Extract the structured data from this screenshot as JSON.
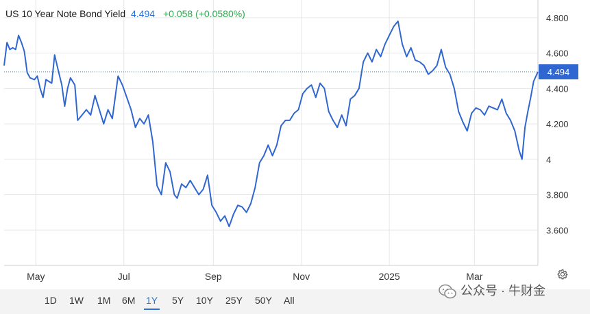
{
  "header": {
    "title": "US 10 Year Note Bond Yield",
    "price": "4.494",
    "change": "+0.058 (+0.0580%)"
  },
  "colors": {
    "line": "#2f66d0",
    "price": "#2a6fd1",
    "change": "#2fa84f",
    "grid": "#e6e6e6",
    "ref_line": "#2f8ea8",
    "badge": "#2f66d0"
  },
  "chart_data": {
    "type": "line",
    "title": "US 10 Year Note Bond Yield",
    "current_value": 4.494,
    "current_label": "4.494",
    "ylim": [
      3.4,
      4.9
    ],
    "yticks": [
      3.6,
      3.8,
      4.0,
      4.2,
      4.4,
      4.6,
      4.8
    ],
    "ytick_labels": [
      "3.600",
      "3.800",
      "4",
      "4.200",
      "4.400",
      "4.600",
      "4.800"
    ],
    "xlim": [
      "2024-04-09",
      "2025-04-14"
    ],
    "xtick_labels": [
      "May",
      "Jul",
      "Sep",
      "Nov",
      "2025",
      "Mar"
    ],
    "xtick_dates": [
      "2024-05-01",
      "2024-07-01",
      "2024-09-01",
      "2024-11-01",
      "2025-01-01",
      "2025-03-01"
    ],
    "grid": true,
    "series": [
      {
        "dates": [
          "2024-04-09",
          "2024-04-11",
          "2024-04-13",
          "2024-04-15",
          "2024-04-17",
          "2024-04-19",
          "2024-04-21",
          "2024-04-23",
          "2024-04-25",
          "2024-04-27",
          "2024-04-30",
          "2024-05-02",
          "2024-05-04",
          "2024-05-06",
          "2024-05-08",
          "2024-05-10",
          "2024-05-12",
          "2024-05-14",
          "2024-05-16",
          "2024-05-19",
          "2024-05-21",
          "2024-05-23",
          "2024-05-25",
          "2024-05-28",
          "2024-05-30",
          "2024-06-02",
          "2024-06-05",
          "2024-06-08",
          "2024-06-11",
          "2024-06-14",
          "2024-06-17",
          "2024-06-20",
          "2024-06-23",
          "2024-06-27",
          "2024-06-30",
          "2024-07-03",
          "2024-07-06",
          "2024-07-09",
          "2024-07-12",
          "2024-07-15",
          "2024-07-18",
          "2024-07-21",
          "2024-07-24",
          "2024-07-27",
          "2024-07-30",
          "2024-08-02",
          "2024-08-05",
          "2024-08-07",
          "2024-08-10",
          "2024-08-13",
          "2024-08-16",
          "2024-08-19",
          "2024-08-22",
          "2024-08-25",
          "2024-08-28",
          "2024-08-31",
          "2024-09-03",
          "2024-09-06",
          "2024-09-09",
          "2024-09-12",
          "2024-09-15",
          "2024-09-18",
          "2024-09-21",
          "2024-09-24",
          "2024-09-27",
          "2024-09-30",
          "2024-10-03",
          "2024-10-06",
          "2024-10-09",
          "2024-10-12",
          "2024-10-15",
          "2024-10-18",
          "2024-10-21",
          "2024-10-24",
          "2024-10-27",
          "2024-10-30",
          "2024-11-02",
          "2024-11-05",
          "2024-11-08",
          "2024-11-11",
          "2024-11-14",
          "2024-11-17",
          "2024-11-20",
          "2024-11-23",
          "2024-11-26",
          "2024-11-29",
          "2024-12-02",
          "2024-12-05",
          "2024-12-08",
          "2024-12-11",
          "2024-12-14",
          "2024-12-17",
          "2024-12-20",
          "2024-12-23",
          "2024-12-26",
          "2024-12-29",
          "2025-01-01",
          "2025-01-04",
          "2025-01-07",
          "2025-01-10",
          "2025-01-13",
          "2025-01-16",
          "2025-01-19",
          "2025-01-22",
          "2025-01-25",
          "2025-01-28",
          "2025-01-31",
          "2025-02-03",
          "2025-02-06",
          "2025-02-09",
          "2025-02-12",
          "2025-02-15",
          "2025-02-18",
          "2025-02-21",
          "2025-02-24",
          "2025-02-27",
          "2025-03-02",
          "2025-03-05",
          "2025-03-08",
          "2025-03-11",
          "2025-03-14",
          "2025-03-17",
          "2025-03-20",
          "2025-03-23",
          "2025-03-26",
          "2025-03-29",
          "2025-04-01",
          "2025-04-03",
          "2025-04-05",
          "2025-04-07",
          "2025-04-09",
          "2025-04-11",
          "2025-04-14"
        ],
        "values": [
          4.53,
          4.66,
          4.62,
          4.63,
          4.62,
          4.7,
          4.66,
          4.61,
          4.49,
          4.46,
          4.45,
          4.47,
          4.4,
          4.35,
          4.45,
          4.44,
          4.43,
          4.59,
          4.52,
          4.42,
          4.3,
          4.4,
          4.46,
          4.42,
          4.22,
          4.25,
          4.28,
          4.25,
          4.36,
          4.28,
          4.2,
          4.28,
          4.23,
          4.47,
          4.42,
          4.35,
          4.28,
          4.18,
          4.23,
          4.2,
          4.25,
          4.1,
          3.85,
          3.8,
          3.98,
          3.93,
          3.8,
          3.78,
          3.86,
          3.84,
          3.88,
          3.84,
          3.8,
          3.83,
          3.91,
          3.74,
          3.7,
          3.65,
          3.68,
          3.62,
          3.69,
          3.74,
          3.73,
          3.7,
          3.75,
          3.84,
          3.98,
          4.02,
          4.08,
          4.02,
          4.08,
          4.19,
          4.22,
          4.22,
          4.26,
          4.28,
          4.37,
          4.4,
          4.42,
          4.35,
          4.43,
          4.4,
          4.27,
          4.22,
          4.18,
          4.25,
          4.19,
          4.34,
          4.36,
          4.4,
          4.55,
          4.6,
          4.55,
          4.62,
          4.58,
          4.65,
          4.7,
          4.75,
          4.78,
          4.65,
          4.58,
          4.63,
          4.56,
          4.55,
          4.53,
          4.48,
          4.5,
          4.53,
          4.62,
          4.52,
          4.48,
          4.4,
          4.27,
          4.21,
          4.16,
          4.26,
          4.29,
          4.28,
          4.25,
          4.3,
          4.29,
          4.28,
          4.34,
          4.26,
          4.22,
          4.16,
          4.05,
          4.0,
          4.18,
          4.27,
          4.35,
          4.44,
          4.494
        ]
      }
    ]
  },
  "range_buttons": [
    "1D",
    "1W",
    "1M",
    "6M",
    "1Y",
    "5Y",
    "10Y",
    "25Y",
    "50Y",
    "All"
  ],
  "selected_range": "1Y",
  "watermark": "公众号 · 牛财金"
}
